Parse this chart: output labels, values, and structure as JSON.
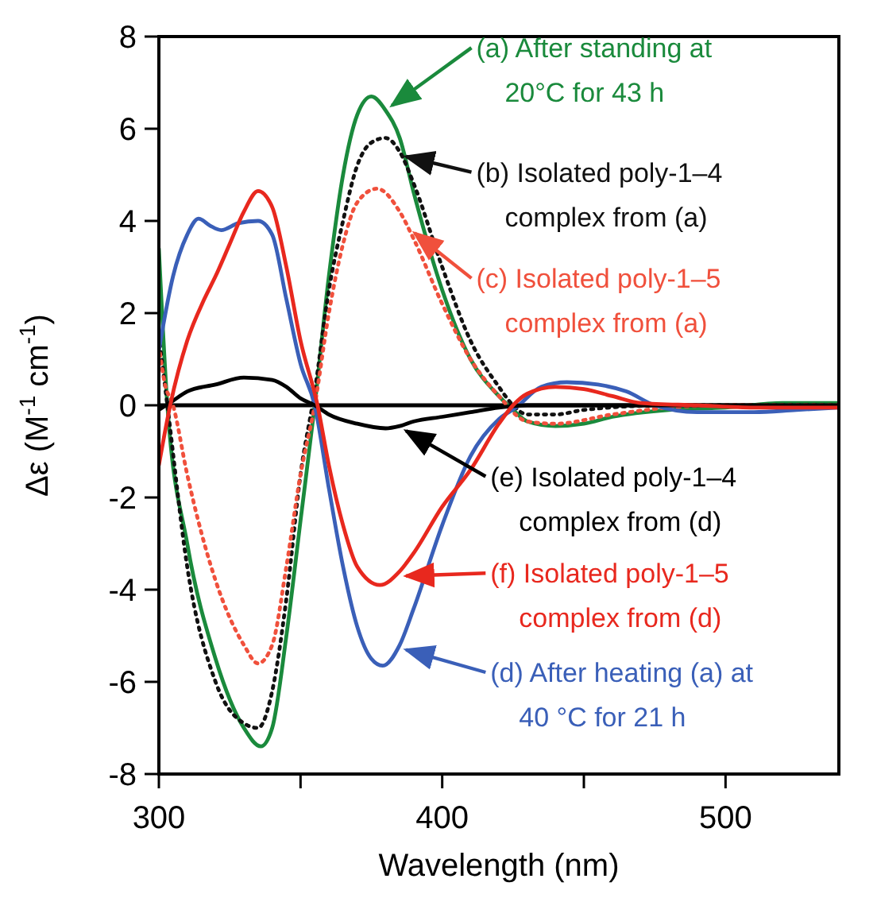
{
  "chart_data": {
    "type": "line",
    "xlabel": "Wavelength (nm)",
    "ylabel": "Δε (M$^{-1}$ cm$^{-1}$)",
    "xlim": [
      300,
      540
    ],
    "xticks": [
      300,
      {
        "value": 350,
        "label": null
      },
      400,
      {
        "value": 450,
        "label": null
      },
      500
    ],
    "legend": "right",
    "ylim": [
      -8,
      8
    ],
    "yticks": [
      -8,
      -6,
      -4,
      -2,
      0,
      2,
      4,
      6,
      8
    ],
    "ref_lines": [
      {
        "axis": "y",
        "value": 0,
        "color": "#000000"
      }
    ],
    "series": [
      {
        "name": "(a) After standing at\n20°C for 43 h",
        "color": "#1a8a3c",
        "line_style": "solid",
        "x": [
          300,
          303,
          310,
          320,
          330,
          336,
          340,
          345,
          350,
          355,
          360,
          365,
          370,
          375,
          380,
          385,
          390,
          400,
          410,
          420,
          425,
          430,
          440,
          450,
          460,
          480,
          500,
          520,
          540
        ],
        "values": [
          3.4,
          0,
          -3,
          -5.5,
          -7,
          -7.4,
          -7,
          -5,
          -2.5,
          0,
          2.8,
          5,
          6.3,
          6.7,
          6.4,
          5.8,
          4.6,
          2.5,
          1.0,
          0.2,
          -0.1,
          -0.35,
          -0.45,
          -0.4,
          -0.25,
          -0.1,
          -0.05,
          0.05,
          0.05
        ]
      },
      {
        "name": "(b) Isolated poly-1–4\ncomplex from (a)",
        "color": "#111111",
        "line_style": "dotted",
        "x": [
          300,
          303,
          310,
          320,
          330,
          335,
          340,
          345,
          350,
          355,
          360,
          365,
          370,
          375,
          380,
          385,
          390,
          400,
          410,
          420,
          425,
          430,
          440,
          450,
          480,
          540
        ],
        "values": [
          1.5,
          0,
          -3.5,
          -6,
          -6.9,
          -7.0,
          -6.2,
          -4.2,
          -1.5,
          0.3,
          2.5,
          4.0,
          5.2,
          5.7,
          5.8,
          5.5,
          4.8,
          3.0,
          1.4,
          0.4,
          0,
          -0.2,
          -0.2,
          -0.1,
          0,
          0
        ]
      },
      {
        "name": "(c) Isolated poly-1–5\ncomplex from (a)",
        "color": "#f0503c",
        "line_style": "dotted",
        "x": [
          300,
          302,
          305,
          310,
          320,
          330,
          335,
          340,
          345,
          350,
          355,
          360,
          365,
          370,
          377,
          385,
          390,
          400,
          410,
          420,
          430,
          440,
          460,
          480,
          500,
          540
        ],
        "values": [
          1.3,
          0.5,
          0,
          -1.5,
          -3.8,
          -5.2,
          -5.6,
          -5.2,
          -3.5,
          -1.5,
          0,
          2.0,
          3.5,
          4.4,
          4.7,
          4.2,
          3.6,
          2.2,
          1.0,
          0.2,
          -0.35,
          -0.4,
          -0.2,
          -0.05,
          0,
          0
        ]
      },
      {
        "name": "(d) After heating (a) at\n40 °C for 21 h",
        "color": "#3a5fb8",
        "line_style": "solid",
        "x": [
          300,
          305,
          310,
          314,
          318,
          322,
          328,
          335,
          340,
          345,
          350,
          355,
          360,
          365,
          370,
          375,
          379,
          385,
          390,
          400,
          410,
          420,
          426,
          435,
          444,
          455,
          465,
          475,
          490,
          510,
          525,
          540
        ],
        "values": [
          1.2,
          2.8,
          3.7,
          4.05,
          3.9,
          3.8,
          3.95,
          4.0,
          3.7,
          2.3,
          0.9,
          0,
          -1.8,
          -3.5,
          -4.8,
          -5.5,
          -5.65,
          -5.2,
          -4.4,
          -2.6,
          -1.1,
          -0.3,
          -0.05,
          0.4,
          0.5,
          0.45,
          0.3,
          0,
          -0.15,
          -0.15,
          -0.1,
          -0.05
        ]
      },
      {
        "name": "(e) Isolated poly-1–4\ncomplex from (d)",
        "color": "#000000",
        "line_style": "solid",
        "x": [
          300,
          305,
          310,
          320,
          330,
          340,
          345,
          350,
          355,
          360,
          370,
          380,
          385,
          390,
          400,
          410,
          420,
          430,
          540
        ],
        "values": [
          -0.1,
          0.1,
          0.3,
          0.45,
          0.6,
          0.55,
          0.4,
          0.15,
          0,
          -0.2,
          -0.4,
          -0.5,
          -0.45,
          -0.35,
          -0.25,
          -0.15,
          -0.05,
          0,
          0
        ]
      },
      {
        "name": "(f) Isolated poly-1–5\ncomplex from (d)",
        "color": "#e8281e",
        "line_style": "solid",
        "x": [
          300,
          304,
          310,
          316,
          320,
          325,
          330,
          335,
          340,
          345,
          350,
          356,
          360,
          365,
          370,
          378,
          385,
          390,
          400,
          410,
          420,
          425,
          430,
          440,
          450,
          460,
          470,
          490,
          510,
          540
        ],
        "values": [
          -1.3,
          0,
          1.4,
          2.3,
          2.8,
          3.5,
          4.2,
          4.65,
          4.3,
          3.0,
          1.4,
          0,
          -1.3,
          -2.6,
          -3.5,
          -3.9,
          -3.6,
          -3.2,
          -2.2,
          -1.4,
          -0.4,
          0,
          0.25,
          0.4,
          0.35,
          0.2,
          0.05,
          0,
          -0.05,
          -0.05
        ]
      }
    ]
  }
}
